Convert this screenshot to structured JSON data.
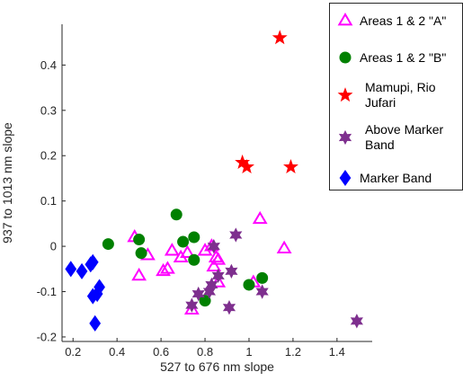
{
  "chart_data": {
    "type": "scatter",
    "xlabel": "527 to 676 nm slope",
    "ylabel": "937 to 1013 nm slope",
    "xlim": [
      0.15,
      1.56
    ],
    "ylim": [
      -0.21,
      0.49
    ],
    "xticks": [
      0.2,
      0.4,
      0.6,
      0.8,
      1,
      1.2,
      1.4
    ],
    "xtick_labels": [
      "0.2",
      "0.4",
      "0.6",
      "0.8",
      "1",
      "1.2",
      "1.4"
    ],
    "yticks": [
      -0.2,
      -0.1,
      0,
      0.1,
      0.2,
      0.3,
      0.4
    ],
    "ytick_labels": [
      "-0.2",
      "-0.1",
      "0",
      "0.1",
      "0.2",
      "0.3",
      "0.4"
    ],
    "grid": false,
    "legend_position": "top-right",
    "series": [
      {
        "name": "Areas 1 & 2 \"A\"",
        "marker": "triangle",
        "color": "#ff00ff",
        "filled": false,
        "points": [
          [
            0.48,
            0.02
          ],
          [
            0.5,
            -0.065
          ],
          [
            0.54,
            -0.02
          ],
          [
            0.61,
            -0.055
          ],
          [
            0.63,
            -0.05
          ],
          [
            0.65,
            -0.01
          ],
          [
            0.69,
            -0.025
          ],
          [
            0.72,
            -0.015
          ],
          [
            0.74,
            -0.14
          ],
          [
            0.8,
            -0.01
          ],
          [
            0.83,
            0.0
          ],
          [
            0.84,
            -0.045
          ],
          [
            0.85,
            -0.025
          ],
          [
            0.86,
            -0.03
          ],
          [
            0.86,
            -0.08
          ],
          [
            1.02,
            -0.08
          ],
          [
            1.05,
            0.06
          ],
          [
            1.16,
            -0.005
          ]
        ]
      },
      {
        "name": "Areas 1 & 2 \"B\"",
        "marker": "circle",
        "color": "#008000",
        "filled": true,
        "points": [
          [
            0.36,
            0.005
          ],
          [
            0.5,
            0.015
          ],
          [
            0.51,
            -0.015
          ],
          [
            0.67,
            0.07
          ],
          [
            0.7,
            0.01
          ],
          [
            0.75,
            0.02
          ],
          [
            0.75,
            -0.03
          ],
          [
            0.8,
            -0.12
          ],
          [
            1.0,
            -0.085
          ],
          [
            1.06,
            -0.07
          ]
        ]
      },
      {
        "name": "Mamupi, Rio Jufari",
        "marker": "star",
        "color": "#ff0000",
        "filled": true,
        "points": [
          [
            0.97,
            0.185
          ],
          [
            0.99,
            0.175
          ],
          [
            1.14,
            0.46
          ],
          [
            1.19,
            0.175
          ]
        ]
      },
      {
        "name": "Above Marker Band",
        "marker": "hexagram",
        "color": "#7e2f8e",
        "filled": true,
        "points": [
          [
            0.74,
            -0.13
          ],
          [
            0.77,
            -0.105
          ],
          [
            0.82,
            -0.1
          ],
          [
            0.83,
            -0.085
          ],
          [
            0.84,
            0.0
          ],
          [
            0.86,
            -0.065
          ],
          [
            0.91,
            -0.135
          ],
          [
            0.92,
            -0.055
          ],
          [
            0.94,
            0.025
          ],
          [
            1.06,
            -0.1
          ],
          [
            1.49,
            -0.165
          ]
        ]
      },
      {
        "name": "Marker Band",
        "marker": "diamond",
        "color": "#0000ff",
        "filled": true,
        "points": [
          [
            0.19,
            -0.05
          ],
          [
            0.24,
            -0.055
          ],
          [
            0.28,
            -0.04
          ],
          [
            0.29,
            -0.035
          ],
          [
            0.29,
            -0.11
          ],
          [
            0.31,
            -0.105
          ],
          [
            0.32,
            -0.09
          ],
          [
            0.3,
            -0.17
          ]
        ]
      }
    ],
    "legend": {
      "entries": [
        [
          "Areas 1 & 2 \"A\""
        ],
        [
          "Areas 1 & 2 \"B\""
        ],
        [
          "Mamupi, Rio",
          "Jufari"
        ],
        [
          "Above Marker",
          "Band"
        ],
        [
          "Marker Band"
        ]
      ]
    }
  }
}
